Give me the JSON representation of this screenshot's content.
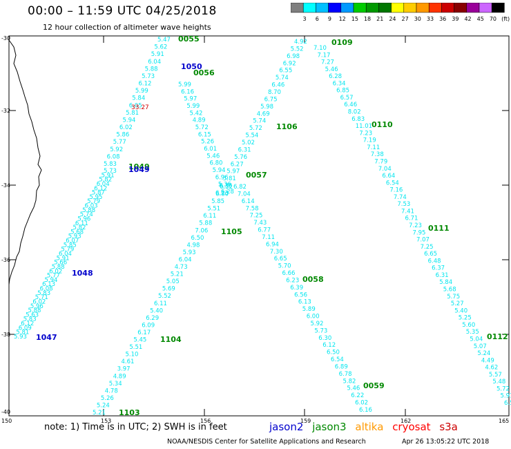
{
  "title": "00:00 – 11:59 UTC 04/25/2018",
  "subtitle": "12 hour collection of altimeter wave heights",
  "color_scale": {
    "colors": [
      "#7f7f7f",
      "#00ffff",
      "#00bfff",
      "#0000ff",
      "#0099ff",
      "#00cc00",
      "#009900",
      "#007700",
      "#ffff00",
      "#ffcc00",
      "#ff9900",
      "#ff3300",
      "#cc0000",
      "#880000",
      "#990099",
      "#cc66ff",
      "#000000"
    ],
    "labels": [
      "3",
      "6",
      "9",
      "12",
      "15",
      "18",
      "21",
      "24",
      "27",
      "30",
      "33",
      "36",
      "39",
      "42",
      "45",
      "70",
      "(ft)"
    ]
  },
  "axes": {
    "lat_labels": [
      "-30",
      "-32",
      "-34",
      "-36",
      "-38",
      "-40"
    ],
    "lon_labels": [
      "150",
      "153",
      "156",
      "159",
      "162",
      "165"
    ]
  },
  "pass_labels": {
    "t0055": "0055",
    "t1050": "1050",
    "t0056": "0056",
    "t1049a": "1049",
    "t1049b": "1049",
    "t1048": "1048",
    "t1047": "1047",
    "t1105": "1105",
    "t1104": "1104",
    "t1103": "1103",
    "t0057": "0057",
    "t1106": "1106",
    "t0109": "0109",
    "t0110": "0110",
    "t0058": "0058",
    "t0059": "0059",
    "t0111": "0111",
    "t0112": "0112"
  },
  "satellite_colors": {
    "jason2": "#0000cc",
    "jason3": "#008800",
    "altika": "#ff9900",
    "cryosat": "#ff0000",
    "s3a": "#cc0000"
  },
  "anomaly_label": "33.27",
  "track_values": {
    "A_upper": [
      "5.47",
      "5.62",
      "5.91",
      "6.04",
      "5.88",
      "5.73",
      "6.12",
      "5.99",
      "5.84",
      "6.05",
      "5.81",
      "5.94",
      "6.02",
      "5.86",
      "5.77",
      "5.92",
      "6.08",
      "5.83"
    ],
    "A_lower": [
      "5.73",
      "5.91",
      "5.82",
      "6.04",
      "6.12",
      "5.87",
      "5.95",
      "5.79",
      "6.03",
      "5.88",
      "5.74",
      "5.96",
      "6.11",
      "5.82",
      "5.68",
      "5.93",
      "6.07",
      "5.85",
      "5.79",
      "6.04",
      "5.91",
      "5.66",
      "5.88",
      "6.02",
      "5.77",
      "5.94",
      "6.13",
      "6.08",
      "5.83",
      "5.71",
      "6.02",
      "5.96",
      "5.88",
      "5.63",
      "5.83",
      "6.12",
      "6.09",
      "5.81",
      "5.93"
    ],
    "B": [
      "5.99",
      "6.16",
      "5.97",
      "5.99",
      "5.42",
      "4.89",
      "5.72",
      "6.15",
      "5.26",
      "6.01",
      "5.46",
      "6.80",
      "5.94",
      "6.96",
      "5.36",
      "6.28"
    ],
    "C": [
      "6.52",
      "6.80",
      "5.85",
      "5.51",
      "6.11",
      "5.88",
      "7.06",
      "6.50",
      "4.98",
      "5.93",
      "6.04",
      "4.73",
      "5.21",
      "5.05",
      "5.69",
      "5.52",
      "6.11",
      "5.40",
      "6.29",
      "6.09",
      "6.17",
      "5.45",
      "5.51",
      "5.10",
      "4.61",
      "3.97",
      "4.89",
      "5.34",
      "4.78",
      "5.26",
      "5.24",
      "5.21"
    ],
    "D": [
      "4.92",
      "5.52",
      "6.98",
      "6.92",
      "6.55",
      "5.74",
      "6.46",
      "8.70",
      "6.75",
      "5.98",
      "4.69",
      "5.74",
      "5.72",
      "5.54",
      "5.02",
      "6.31",
      "5.76",
      "6.27",
      "5.97",
      "5.81",
      "6.36",
      "6.23"
    ],
    "E": [
      "6.82",
      "7.04",
      "6.14",
      "7.58",
      "7.25",
      "7.43",
      "6.77",
      "7.11",
      "6.94",
      "7.30",
      "6.65",
      "5.70",
      "6.66",
      "6.23",
      "6.39",
      "6.56",
      "6.13",
      "5.89",
      "6.00",
      "5.92",
      "5.73",
      "6.30",
      "6.12",
      "6.50",
      "6.54",
      "6.89",
      "6.78",
      "5.82",
      "5.46",
      "6.22",
      "6.02",
      "6.16"
    ],
    "F": [
      "7.10",
      "7.17",
      "7.27",
      "5.46",
      "6.28",
      "6.34",
      "6.85",
      "6.57",
      "6.46",
      "8.02",
      "6.83",
      "11.01",
      "7.23",
      "7.19",
      "7.11",
      "7.38",
      "7.79",
      "7.04",
      "6.64",
      "6.54",
      "7.16",
      "7.74",
      "7.53",
      "7.41",
      "6.71",
      "7.23",
      "7.95",
      "7.07",
      "7.25",
      "6.65",
      "6.48",
      "6.37",
      "6.31",
      "5.84",
      "5.68",
      "5.75",
      "5.27",
      "5.40",
      "5.25",
      "5.60",
      "5.35",
      "5.04",
      "5.07",
      "5.24",
      "4.49",
      "4.62",
      "5.57",
      "5.48",
      "5.72",
      "5.91",
      "6.5"
    ]
  }
}
